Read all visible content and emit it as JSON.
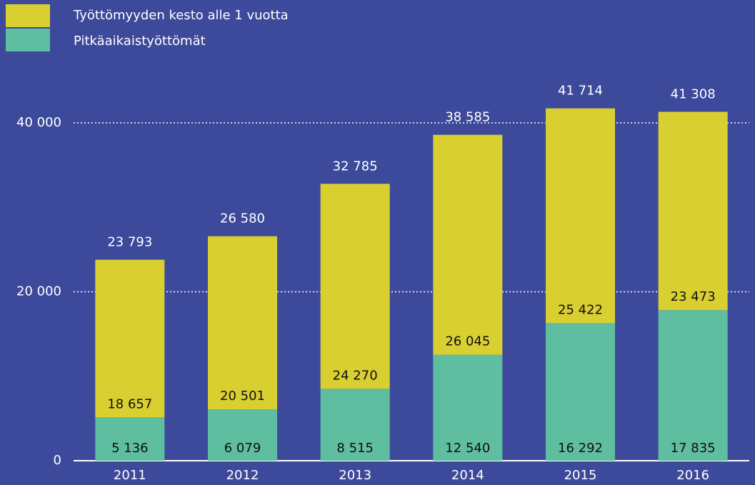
{
  "chart_data": {
    "type": "stacked_bar",
    "categories": [
      "2011",
      "2012",
      "2013",
      "2014",
      "2015",
      "2016"
    ],
    "series": [
      {
        "name": "Pitkäaikaistyöttömät",
        "color": "#5fbea0",
        "values": [
          5136,
          6079,
          8515,
          12540,
          16292,
          17835
        ],
        "value_labels": [
          "5 136",
          "6 079",
          "8 515",
          "12 540",
          "16 292",
          "17 835"
        ]
      },
      {
        "name": "Työttömyyden kesto alle 1 vuotta",
        "color": "#d9cf31",
        "values": [
          18657,
          20501,
          24270,
          26045,
          25422,
          23473
        ],
        "value_labels": [
          "18 657",
          "20 501",
          "24 270",
          "26 045",
          "25 422",
          "23 473"
        ]
      }
    ],
    "totals": [
      23793,
      26580,
      32785,
      38585,
      41714,
      41308
    ],
    "total_labels": [
      "23 793",
      "26 580",
      "32 785",
      "38 585",
      "41 714",
      "41 308"
    ],
    "ylim": [
      0,
      44000
    ],
    "yticks": [
      0,
      {
        "value": 20000,
        "label": "20 000"
      },
      {
        "value": 40000,
        "label": "40 000"
      }
    ],
    "grid": true
  }
}
